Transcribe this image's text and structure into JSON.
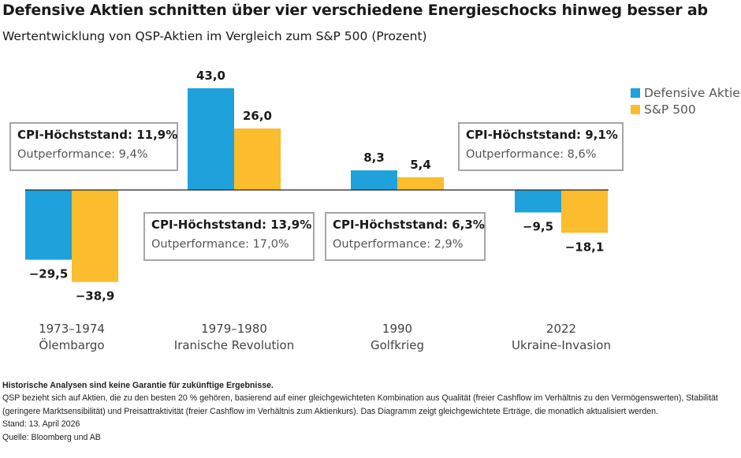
{
  "title": "Defensive Aktien schnitten über vier verschiedene Energieschocks hinweg besser ab",
  "subtitle": "Wertentwicklung von QSP-Aktien im Vergleich zum S&P 500 (Prozent)",
  "colors": {
    "defensive": "#1fa1dc",
    "sp500": "#fbbd2d",
    "baseline": "#222222"
  },
  "chart_data": {
    "type": "bar",
    "categories": [
      [
        "1973–1974",
        "Ölembargo"
      ],
      [
        "1979–1980",
        "Iranische Revolution"
      ],
      [
        "1990",
        "Golfkrieg"
      ],
      [
        "2022",
        "Ukraine-Invasion"
      ]
    ],
    "series": [
      {
        "name": "Defensive Aktien",
        "values": [
          -29.5,
          43.0,
          8.3,
          -9.5
        ],
        "labels": [
          "−29,5",
          "43,0",
          "8,3",
          "−9,5"
        ]
      },
      {
        "name": "S&P 500",
        "values": [
          -38.9,
          26.0,
          5.4,
          -18.1
        ],
        "labels": [
          "−38,9",
          "26,0",
          "5,4",
          "−18,1"
        ]
      }
    ],
    "ylim": [
      -45,
      45
    ],
    "grid": false,
    "legend": "top-right",
    "annotations": [
      {
        "title": "CPI-Höchststand: 11,9%",
        "sub": "Outperformance: 9,4%"
      },
      {
        "title": "CPI-Höchststand: 13,9%",
        "sub": "Outperformance: 17,0%"
      },
      {
        "title": "CPI-Höchststand: 6,3%",
        "sub": "Outperformance: 2,9%"
      },
      {
        "title": "CPI-Höchststand: 9,1%",
        "sub": "Outperformance: 8,6%"
      }
    ]
  },
  "footnotes": [
    "Historische Analysen sind keine Garantie für zukünftige Ergebnisse.",
    "QSP bezieht sich auf Aktien, die zu den besten 20 % gehören, basierend auf einer gleichgewichteten Kombination aus Qualität (freier Cashflow im Verhältnis zu den Vermögenswerten), Stabilität (geringere Marktsensibilität) und Preisattraktivität (freier Cashflow im Verhältnis zum Aktienkurs). Das Diagramm zeigt gleichgewichtete Erträge, die monatlich aktualisiert werden.",
    "Stand: 13. April 2026",
    "Quelle: Bloomberg und AB"
  ]
}
